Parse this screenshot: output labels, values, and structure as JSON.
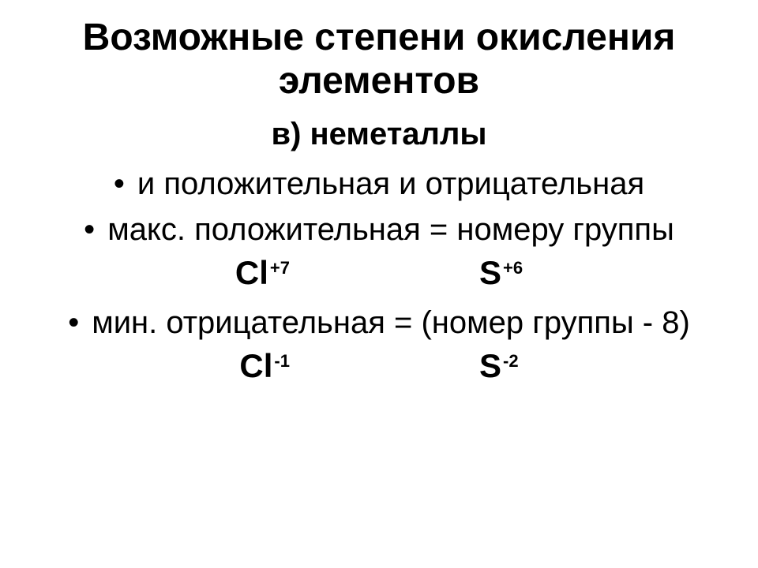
{
  "background_color": "#ffffff",
  "text_color": "#000000",
  "title": "Возможные степени окисления элементов",
  "title_fontsize": 48,
  "subtitle": "в) неметаллы",
  "subtitle_fontsize": 40,
  "bullets": [
    {
      "text": "и положительная и отрицательная"
    },
    {
      "text": "макс. положительная =  номеру группы"
    }
  ],
  "formula_row_1": [
    {
      "symbol": "Cl",
      "sup": "+7"
    },
    {
      "symbol": "S",
      "sup": "+6"
    }
  ],
  "bullets2": [
    {
      "text": "мин. отрицательная = (номер группы - 8)"
    }
  ],
  "formula_row_2": [
    {
      "symbol": "Cl",
      "sup": "-1"
    },
    {
      "symbol": "S",
      "sup": "-2"
    }
  ],
  "body_fontsize": 40,
  "formula_fontsize": 42,
  "sup_fontsize": 22
}
